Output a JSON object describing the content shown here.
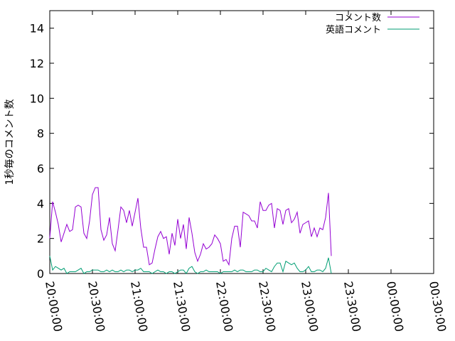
{
  "chart_data": {
    "type": "line",
    "title": "",
    "xlabel": "",
    "ylabel": "1秒毎のコメント数",
    "x_ticks": [
      "20:00:00",
      "20:30:00",
      "21:00:00",
      "21:30:00",
      "22:00:00",
      "22:30:00",
      "23:00:00",
      "23:30:00",
      "00:00:00",
      "00:30:00"
    ],
    "x_range_minutes": [
      0,
      270
    ],
    "ylim": [
      0,
      15
    ],
    "y_ticks": [
      0,
      2,
      4,
      6,
      8,
      10,
      12,
      14
    ],
    "grid": false,
    "legend_position": "top-right",
    "x_step_minutes": 2,
    "series": [
      {
        "name": "コメント数",
        "color": "#9400d3",
        "values": [
          2.0,
          4.1,
          3.5,
          2.8,
          1.8,
          2.3,
          2.8,
          2.4,
          2.5,
          3.8,
          3.9,
          3.8,
          2.3,
          2.0,
          3.0,
          4.5,
          4.9,
          4.9,
          2.5,
          1.9,
          2.2,
          3.2,
          1.7,
          1.3,
          2.5,
          3.8,
          3.6,
          2.9,
          3.6,
          2.7,
          3.5,
          4.3,
          2.6,
          1.5,
          1.5,
          0.5,
          0.6,
          1.4,
          2.1,
          2.4,
          2.0,
          2.1,
          1.1,
          2.3,
          1.6,
          3.1,
          2.0,
          2.8,
          1.4,
          3.2,
          2.3,
          1.2,
          0.7,
          1.1,
          1.7,
          1.4,
          1.5,
          1.7,
          2.2,
          2.0,
          1.7,
          0.7,
          0.8,
          0.5,
          2.0,
          2.7,
          2.7,
          1.5,
          3.5,
          3.4,
          3.3,
          3.0,
          3.0,
          2.6,
          4.1,
          3.6,
          3.6,
          3.9,
          4.0,
          2.6,
          3.7,
          3.6,
          2.8,
          3.6,
          3.7,
          2.9,
          3.1,
          3.5,
          2.3,
          2.8,
          2.9,
          3.0,
          2.1,
          2.6,
          2.1,
          2.6,
          2.5,
          3.2,
          4.6,
          1.0
        ]
      },
      {
        "name": "英語コメント",
        "color": "#009e73",
        "values": [
          1.0,
          0.2,
          0.4,
          0.3,
          0.2,
          0.3,
          0.0,
          0.1,
          0.1,
          0.1,
          0.2,
          0.3,
          0.0,
          0.1,
          0.1,
          0.2,
          0.2,
          0.2,
          0.1,
          0.1,
          0.2,
          0.1,
          0.2,
          0.1,
          0.1,
          0.2,
          0.1,
          0.2,
          0.2,
          0.1,
          0.2,
          0.2,
          0.3,
          0.1,
          0.1,
          0.1,
          0.0,
          0.1,
          0.2,
          0.1,
          0.1,
          0.0,
          0.1,
          0.1,
          0.0,
          0.1,
          0.2,
          0.2,
          0.0,
          0.3,
          0.4,
          0.1,
          0.0,
          0.1,
          0.1,
          0.2,
          0.1,
          0.1,
          0.1,
          0.1,
          0.0,
          0.1,
          0.1,
          0.1,
          0.1,
          0.2,
          0.1,
          0.2,
          0.2,
          0.1,
          0.1,
          0.1,
          0.2,
          0.2,
          0.1,
          0.1,
          0.3,
          0.2,
          0.1,
          0.4,
          0.6,
          0.6,
          0.1,
          0.7,
          0.6,
          0.5,
          0.6,
          0.3,
          0.1,
          0.1,
          0.2,
          0.4,
          0.1,
          0.1,
          0.2,
          0.2,
          0.1,
          0.3,
          0.9,
          0.0
        ]
      }
    ]
  }
}
